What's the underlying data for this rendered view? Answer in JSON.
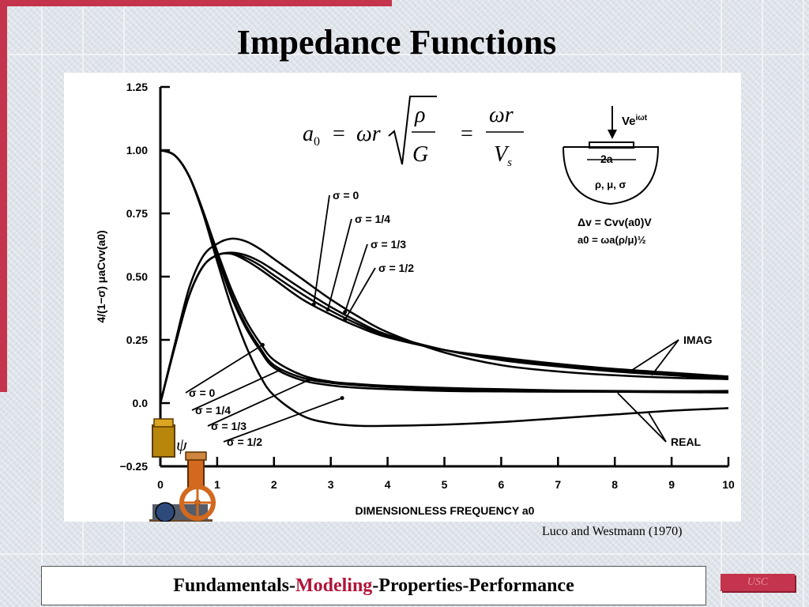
{
  "title": "Impedance Functions",
  "citation": "Luco and Westmann (1970)",
  "footer": {
    "part1": "Fundamentals-",
    "part2": "Modeling",
    "part3": "-Properties-Performance"
  },
  "logo_text": "USC",
  "equation": {
    "lhs": "a",
    "lhs_sub": "0",
    "omega_r": "ωr",
    "rho": "ρ",
    "G": "G",
    "V": "V",
    "V_sub": "s"
  },
  "inset": {
    "load": "Ve",
    "load_sup": "iωt",
    "width_label": "2a",
    "material": "ρ, μ, σ",
    "eq1": "Δv = Cvv(a0)V",
    "eq2": "a0 = ωa(ρ/μ)½"
  },
  "icon_psi": "ψ",
  "colors": {
    "accent": "#c4344c",
    "footer_highlight": "#b0153a"
  },
  "chart_data": {
    "type": "line",
    "xlabel": "DIMENSIONLESS FREQUENCY a0",
    "ylabel": "4/(1−σ) μaCvv(a0)",
    "xlim": [
      0,
      10
    ],
    "ylim": [
      -0.25,
      1.25
    ],
    "x_ticks": [
      "0",
      "1",
      "2",
      "3",
      "4",
      "5",
      "6",
      "7",
      "8",
      "9",
      "10"
    ],
    "y_ticks": [
      "1.25",
      "1.00",
      "0.75",
      "0.50",
      "0.25",
      "0.0",
      "−0.25"
    ],
    "grid": false,
    "legend": "annotations",
    "group_labels": {
      "imag": "IMAG",
      "real": "REAL"
    },
    "series": [
      {
        "name": "σ = 0",
        "group": "imag",
        "x": [
          0,
          0.25,
          0.5,
          0.75,
          1,
          1.25,
          1.5,
          1.75,
          2,
          2.5,
          3,
          3.5,
          4,
          5,
          6,
          7,
          8,
          9,
          10
        ],
        "y": [
          0,
          0.22,
          0.42,
          0.54,
          0.585,
          0.59,
          0.565,
          0.53,
          0.49,
          0.41,
          0.35,
          0.3,
          0.26,
          0.21,
          0.18,
          0.155,
          0.135,
          0.12,
          0.105
        ]
      },
      {
        "name": "σ = 1/4",
        "group": "imag",
        "x": [
          0,
          0.25,
          0.5,
          0.75,
          1,
          1.25,
          1.5,
          1.75,
          2,
          2.5,
          3,
          3.5,
          4,
          5,
          6,
          7,
          8,
          9,
          10
        ],
        "y": [
          0,
          0.22,
          0.42,
          0.54,
          0.585,
          0.592,
          0.575,
          0.545,
          0.505,
          0.43,
          0.365,
          0.31,
          0.265,
          0.21,
          0.175,
          0.15,
          0.13,
          0.115,
          0.1
        ]
      },
      {
        "name": "σ = 1/3",
        "group": "imag",
        "x": [
          0,
          0.25,
          0.5,
          0.75,
          1,
          1.25,
          1.5,
          1.75,
          2,
          2.5,
          3,
          3.5,
          4,
          5,
          6,
          7,
          8,
          9,
          10
        ],
        "y": [
          0,
          0.22,
          0.42,
          0.54,
          0.585,
          0.595,
          0.585,
          0.56,
          0.525,
          0.45,
          0.38,
          0.32,
          0.27,
          0.21,
          0.17,
          0.145,
          0.125,
          0.11,
          0.095
        ]
      },
      {
        "name": "σ = 1/2",
        "group": "imag",
        "x": [
          0,
          0.25,
          0.5,
          0.75,
          1,
          1.25,
          1.5,
          1.75,
          2,
          2.5,
          3,
          3.5,
          4,
          5,
          6,
          7,
          8,
          9,
          10
        ],
        "y": [
          0,
          0.23,
          0.45,
          0.58,
          0.63,
          0.65,
          0.64,
          0.61,
          0.57,
          0.49,
          0.41,
          0.34,
          0.28,
          0.2,
          0.15,
          0.125,
          0.11,
          0.1,
          0.095
        ]
      },
      {
        "name": "σ = 0",
        "group": "real",
        "x": [
          0,
          0.25,
          0.5,
          0.75,
          1,
          1.25,
          1.5,
          1.75,
          2,
          2.5,
          3,
          3.5,
          4,
          5,
          6,
          7,
          8,
          9,
          10
        ],
        "y": [
          1,
          0.98,
          0.9,
          0.76,
          0.6,
          0.45,
          0.33,
          0.24,
          0.17,
          0.11,
          0.085,
          0.075,
          0.068,
          0.06,
          0.055,
          0.05,
          0.048,
          0.047,
          0.046
        ]
      },
      {
        "name": "σ = 1/4",
        "group": "real",
        "x": [
          0,
          0.25,
          0.5,
          0.75,
          1,
          1.25,
          1.5,
          1.75,
          2,
          2.5,
          3,
          3.5,
          4,
          5,
          6,
          7,
          8,
          9,
          10
        ],
        "y": [
          1,
          0.98,
          0.9,
          0.76,
          0.59,
          0.43,
          0.31,
          0.22,
          0.15,
          0.1,
          0.08,
          0.07,
          0.063,
          0.055,
          0.05,
          0.047,
          0.045,
          0.043,
          0.042
        ]
      },
      {
        "name": "σ = 1/3",
        "group": "real",
        "x": [
          0,
          0.25,
          0.5,
          0.75,
          1,
          1.25,
          1.5,
          1.75,
          2,
          2.5,
          3,
          3.5,
          4,
          5,
          6,
          7,
          8,
          9,
          10
        ],
        "y": [
          1,
          0.98,
          0.9,
          0.76,
          0.58,
          0.42,
          0.3,
          0.21,
          0.14,
          0.09,
          0.07,
          0.06,
          0.055,
          0.048,
          0.046,
          0.045,
          0.045,
          0.046,
          0.048
        ]
      },
      {
        "name": "σ = 1/2",
        "group": "real",
        "x": [
          0,
          0.25,
          0.5,
          0.75,
          1,
          1.25,
          1.5,
          1.75,
          2,
          2.5,
          3,
          3.5,
          4,
          5,
          6,
          7,
          8,
          9,
          10
        ],
        "y": [
          1,
          0.98,
          0.9,
          0.75,
          0.56,
          0.38,
          0.23,
          0.11,
          0.03,
          -0.05,
          -0.08,
          -0.09,
          -0.09,
          -0.085,
          -0.075,
          -0.06,
          -0.045,
          -0.03,
          -0.02
        ]
      }
    ]
  }
}
